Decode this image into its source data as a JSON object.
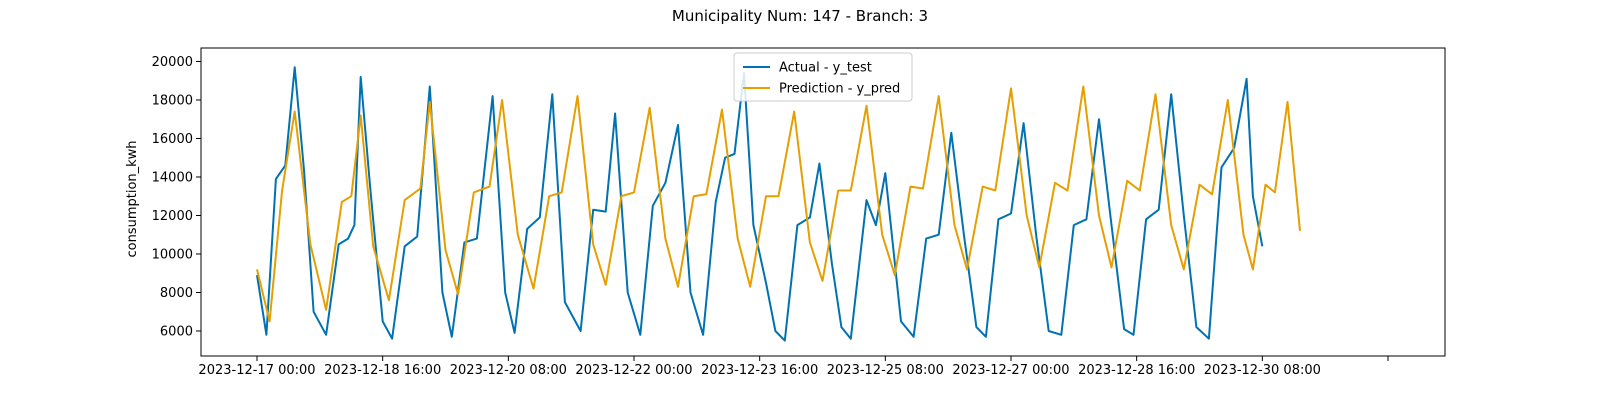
{
  "chart_data": {
    "type": "line",
    "title": "Municipality Num: 147 - Branch: 3",
    "xlabel": "",
    "ylabel": "consumption_kwh",
    "ylim": [
      4700,
      20700
    ],
    "yticks": [
      6000,
      8000,
      10000,
      12000,
      14000,
      16000,
      18000,
      20000
    ],
    "xticks": [
      "2023-12-17 00:00",
      "2023-12-18 16:00",
      "2023-12-20 08:00",
      "2023-12-22 00:00",
      "2023-12-23 16:00",
      "2023-12-25 08:00",
      "2023-12-27 00:00",
      "2023-12-28 16:00",
      "2023-12-30 08:00",
      ""
    ],
    "legend": "upper center",
    "grid": false,
    "colors": {
      "actual": "#0072B2",
      "prediction": "#E69F00"
    },
    "series": [
      {
        "name": "Actual - y_test",
        "points": [
          [
            "2023-12-17 00:00",
            8900
          ],
          [
            "2023-12-17 03:00",
            5800
          ],
          [
            "2023-12-17 06:00",
            13900
          ],
          [
            "2023-12-17 09:00",
            14600
          ],
          [
            "2023-12-17 12:00",
            19700
          ],
          [
            "2023-12-17 15:00",
            14300
          ],
          [
            "2023-12-17 18:00",
            7000
          ],
          [
            "2023-12-17 22:00",
            5800
          ],
          [
            "2023-12-18 02:00",
            10500
          ],
          [
            "2023-12-18 05:00",
            10800
          ],
          [
            "2023-12-18 07:00",
            11500
          ],
          [
            "2023-12-18 09:00",
            19200
          ],
          [
            "2023-12-18 12:00",
            13500
          ],
          [
            "2023-12-18 16:00",
            6500
          ],
          [
            "2023-12-18 19:00",
            5600
          ],
          [
            "2023-12-18 23:00",
            10400
          ],
          [
            "2023-12-19 03:00",
            10900
          ],
          [
            "2023-12-19 07:00",
            18700
          ],
          [
            "2023-12-19 11:00",
            8000
          ],
          [
            "2023-12-19 14:00",
            5700
          ],
          [
            "2023-12-19 18:00",
            10600
          ],
          [
            "2023-12-19 22:00",
            10800
          ],
          [
            "2023-12-20 03:00",
            18200
          ],
          [
            "2023-12-20 07:00",
            8000
          ],
          [
            "2023-12-20 10:00",
            5900
          ],
          [
            "2023-12-20 14:00",
            11300
          ],
          [
            "2023-12-20 18:00",
            11900
          ],
          [
            "2023-12-20 22:00",
            18300
          ],
          [
            "2023-12-21 02:00",
            7500
          ],
          [
            "2023-12-21 07:00",
            6000
          ],
          [
            "2023-12-21 11:00",
            12300
          ],
          [
            "2023-12-21 15:00",
            12200
          ],
          [
            "2023-12-21 18:00",
            17300
          ],
          [
            "2023-12-21 22:00",
            8000
          ],
          [
            "2023-12-22 02:00",
            5800
          ],
          [
            "2023-12-22 06:00",
            12500
          ],
          [
            "2023-12-22 10:00",
            13700
          ],
          [
            "2023-12-22 14:00",
            16700
          ],
          [
            "2023-12-22 18:00",
            8000
          ],
          [
            "2023-12-22 22:00",
            5800
          ],
          [
            "2023-12-23 02:00",
            12700
          ],
          [
            "2023-12-23 05:00",
            15000
          ],
          [
            "2023-12-23 08:00",
            15200
          ],
          [
            "2023-12-23 11:00",
            19400
          ],
          [
            "2023-12-23 14:00",
            11500
          ],
          [
            "2023-12-23 18:00",
            8500
          ],
          [
            "2023-12-23 21:00",
            6000
          ],
          [
            "2023-12-24 00:00",
            5500
          ],
          [
            "2023-12-24 04:00",
            11500
          ],
          [
            "2023-12-24 08:00",
            11900
          ],
          [
            "2023-12-24 11:00",
            14700
          ],
          [
            "2023-12-24 15:00",
            9500
          ],
          [
            "2023-12-24 18:00",
            6200
          ],
          [
            "2023-12-24 21:00",
            5600
          ],
          [
            "2023-12-25 02:00",
            12800
          ],
          [
            "2023-12-25 05:00",
            11500
          ],
          [
            "2023-12-25 08:00",
            14200
          ],
          [
            "2023-12-25 13:00",
            6500
          ],
          [
            "2023-12-25 17:00",
            5700
          ],
          [
            "2023-12-25 21:00",
            10800
          ],
          [
            "2023-12-26 01:00",
            11000
          ],
          [
            "2023-12-26 05:00",
            16300
          ],
          [
            "2023-12-26 09:00",
            11000
          ],
          [
            "2023-12-26 13:00",
            6200
          ],
          [
            "2023-12-26 16:00",
            5700
          ],
          [
            "2023-12-26 20:00",
            11800
          ],
          [
            "2023-12-27 00:00",
            12100
          ],
          [
            "2023-12-27 04:00",
            16800
          ],
          [
            "2023-12-27 08:00",
            11000
          ],
          [
            "2023-12-27 12:00",
            6000
          ],
          [
            "2023-12-27 16:00",
            5800
          ],
          [
            "2023-12-27 20:00",
            11500
          ],
          [
            "2023-12-28 00:00",
            11800
          ],
          [
            "2023-12-28 04:00",
            17000
          ],
          [
            "2023-12-28 08:00",
            11500
          ],
          [
            "2023-12-28 12:00",
            6100
          ],
          [
            "2023-12-28 15:00",
            5800
          ],
          [
            "2023-12-28 19:00",
            11800
          ],
          [
            "2023-12-28 23:00",
            12300
          ],
          [
            "2023-12-29 03:00",
            18300
          ],
          [
            "2023-12-29 07:00",
            12000
          ],
          [
            "2023-12-29 11:00",
            6200
          ],
          [
            "2023-12-29 15:00",
            5600
          ],
          [
            "2023-12-29 19:00",
            14500
          ],
          [
            "2023-12-29 23:00",
            15500
          ],
          [
            "2023-12-30 03:00",
            19100
          ],
          [
            "2023-12-30 05:00",
            13000
          ],
          [
            "2023-12-30 08:00",
            10400
          ]
        ]
      },
      {
        "name": "Prediction - y_pred",
        "points": [
          [
            "2023-12-17 00:00",
            9200
          ],
          [
            "2023-12-17 04:00",
            6500
          ],
          [
            "2023-12-17 08:00",
            13300
          ],
          [
            "2023-12-17 12:00",
            17400
          ],
          [
            "2023-12-17 17:00",
            10500
          ],
          [
            "2023-12-17 22:00",
            7100
          ],
          [
            "2023-12-18 03:00",
            12700
          ],
          [
            "2023-12-18 06:00",
            13000
          ],
          [
            "2023-12-18 09:00",
            17200
          ],
          [
            "2023-12-18 13:00",
            10400
          ],
          [
            "2023-12-18 18:00",
            7600
          ],
          [
            "2023-12-18 23:00",
            12800
          ],
          [
            "2023-12-19 04:00",
            13400
          ],
          [
            "2023-12-19 07:00",
            17900
          ],
          [
            "2023-12-19 12:00",
            10200
          ],
          [
            "2023-12-19 16:00",
            7900
          ],
          [
            "2023-12-19 21:00",
            13200
          ],
          [
            "2023-12-20 02:00",
            13500
          ],
          [
            "2023-12-20 06:00",
            18000
          ],
          [
            "2023-12-20 11:00",
            11000
          ],
          [
            "2023-12-20 16:00",
            8200
          ],
          [
            "2023-12-20 21:00",
            13000
          ],
          [
            "2023-12-21 01:00",
            13200
          ],
          [
            "2023-12-21 06:00",
            18200
          ],
          [
            "2023-12-21 11:00",
            10500
          ],
          [
            "2023-12-21 15:00",
            8400
          ],
          [
            "2023-12-21 20:00",
            13000
          ],
          [
            "2023-12-22 00:00",
            13200
          ],
          [
            "2023-12-22 05:00",
            17600
          ],
          [
            "2023-12-22 10:00",
            10800
          ],
          [
            "2023-12-22 14:00",
            8300
          ],
          [
            "2023-12-22 19:00",
            13000
          ],
          [
            "2023-12-22 23:00",
            13100
          ],
          [
            "2023-12-23 04:00",
            17500
          ],
          [
            "2023-12-23 09:00",
            10800
          ],
          [
            "2023-12-23 13:00",
            8300
          ],
          [
            "2023-12-23 18:00",
            13000
          ],
          [
            "2023-12-23 22:00",
            13000
          ],
          [
            "2023-12-24 03:00",
            17400
          ],
          [
            "2023-12-24 08:00",
            10600
          ],
          [
            "2023-12-24 12:00",
            8600
          ],
          [
            "2023-12-24 17:00",
            13300
          ],
          [
            "2023-12-24 21:00",
            13300
          ],
          [
            "2023-12-25 02:00",
            17700
          ],
          [
            "2023-12-25 07:00",
            11000
          ],
          [
            "2023-12-25 11:00",
            8900
          ],
          [
            "2023-12-25 16:00",
            13500
          ],
          [
            "2023-12-25 20:00",
            13400
          ],
          [
            "2023-12-26 01:00",
            18200
          ],
          [
            "2023-12-26 06:00",
            11500
          ],
          [
            "2023-12-26 10:00",
            9200
          ],
          [
            "2023-12-26 15:00",
            13500
          ],
          [
            "2023-12-26 19:00",
            13300
          ],
          [
            "2023-12-27 00:00",
            18600
          ],
          [
            "2023-12-27 05:00",
            12000
          ],
          [
            "2023-12-27 09:00",
            9300
          ],
          [
            "2023-12-27 14:00",
            13700
          ],
          [
            "2023-12-27 18:00",
            13300
          ],
          [
            "2023-12-27 23:00",
            18700
          ],
          [
            "2023-12-28 04:00",
            12000
          ],
          [
            "2023-12-28 08:00",
            9300
          ],
          [
            "2023-12-28 13:00",
            13800
          ],
          [
            "2023-12-28 17:00",
            13300
          ],
          [
            "2023-12-28 22:00",
            18300
          ],
          [
            "2023-12-29 03:00",
            11500
          ],
          [
            "2023-12-29 07:00",
            9200
          ],
          [
            "2023-12-29 12:00",
            13600
          ],
          [
            "2023-12-29 16:00",
            13100
          ],
          [
            "2023-12-29 21:00",
            18000
          ],
          [
            "2023-12-30 02:00",
            11000
          ],
          [
            "2023-12-30 05:00",
            9200
          ],
          [
            "2023-12-30 09:00",
            13600
          ],
          [
            "2023-12-30 12:00",
            13200
          ],
          [
            "2023-12-30 16:00",
            17900
          ],
          [
            "2023-12-30 20:00",
            11200
          ]
        ]
      }
    ]
  }
}
